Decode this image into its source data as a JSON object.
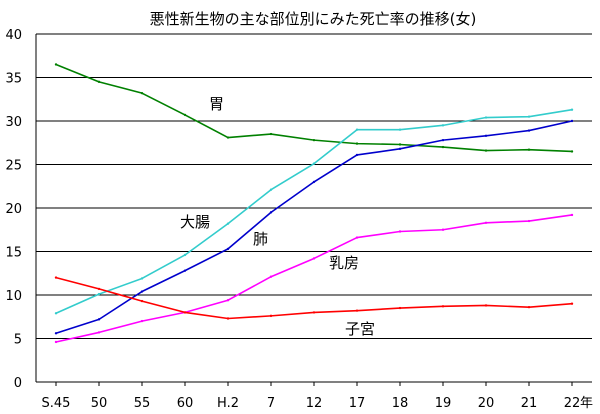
{
  "chart_data": {
    "type": "line",
    "title": "悪性新生物の主な部位別にみた死亡率の推移(女)",
    "xlabel": "",
    "x_unit_label": "年",
    "ylabel": "",
    "ylim": [
      0,
      40
    ],
    "yticks": [
      0,
      5,
      10,
      15,
      20,
      25,
      30,
      35,
      40
    ],
    "grid": true,
    "legend": "labels placed next to lines",
    "categories": [
      "S.45",
      "50",
      "55",
      "60",
      "H.2",
      "7",
      "12",
      "17",
      "18",
      "19",
      "20",
      "21",
      "22"
    ],
    "series": [
      {
        "name": "胃",
        "color": "#008000",
        "values": [
          36.5,
          34.5,
          33.2,
          30.7,
          28.1,
          28.5,
          27.8,
          27.4,
          27.3,
          27.0,
          26.6,
          26.7,
          26.5
        ]
      },
      {
        "name": "大腸",
        "color": "#33cccc",
        "values": [
          7.9,
          10.1,
          11.9,
          14.6,
          18.2,
          22.1,
          25.1,
          29.0,
          29.0,
          29.5,
          30.4,
          30.5,
          31.3
        ]
      },
      {
        "name": "肺",
        "color": "#0000cc",
        "values": [
          5.6,
          7.2,
          10.4,
          12.8,
          15.3,
          19.5,
          23.0,
          26.1,
          26.8,
          27.8,
          28.3,
          28.9,
          30.0
        ]
      },
      {
        "name": "乳房",
        "color": "#ff00ff",
        "values": [
          4.6,
          5.7,
          7.0,
          8.0,
          9.4,
          12.1,
          14.2,
          16.6,
          17.3,
          17.5,
          18.3,
          18.5,
          19.2
        ]
      },
      {
        "name": "子宮",
        "color": "#ff0000",
        "values": [
          12.0,
          10.7,
          9.3,
          8.0,
          7.3,
          7.6,
          8.0,
          8.2,
          8.5,
          8.7,
          8.8,
          8.6,
          9.0
        ]
      }
    ]
  }
}
